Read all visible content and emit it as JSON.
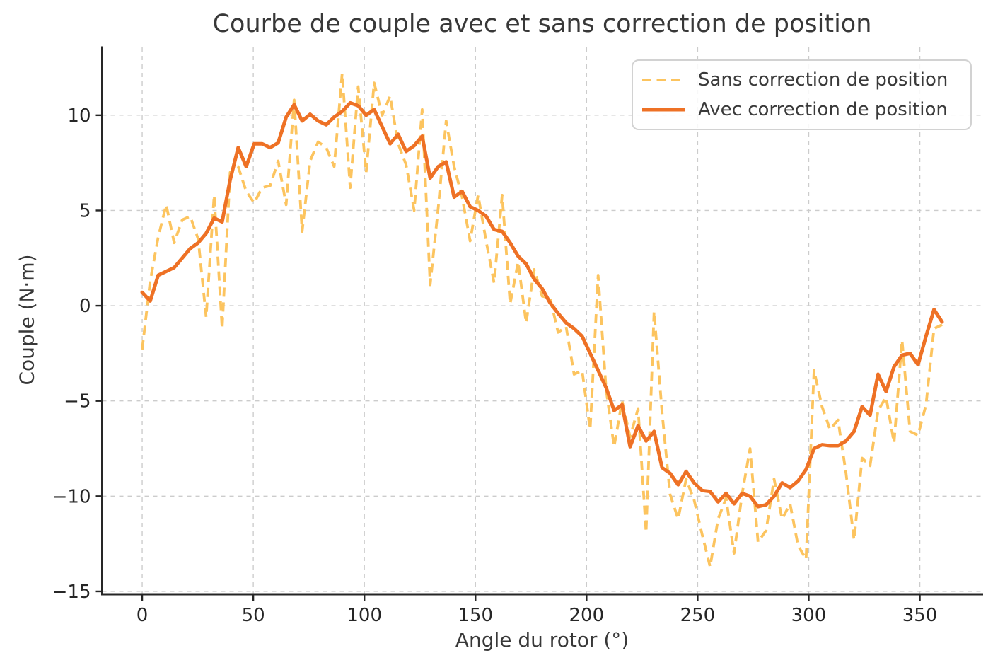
{
  "chart_data": {
    "type": "line",
    "title": "Courbe de couple avec et sans correction de position",
    "xlabel": "Angle du rotor (°)",
    "ylabel": "Couple (N·m)",
    "xlim": [
      -18,
      378
    ],
    "ylim": [
      -15.15,
      13.56
    ],
    "grid": true,
    "grid_style": "dashed",
    "legend_position": "upper right",
    "xticks": [
      0,
      50,
      100,
      150,
      200,
      250,
      300,
      350
    ],
    "xtick_labels": [
      "0",
      "50",
      "100",
      "150",
      "200",
      "250",
      "300",
      "350"
    ],
    "yticks": [
      10,
      5,
      0,
      -5,
      -10,
      -15
    ],
    "ytick_labels": [
      "10",
      "5",
      "0",
      "−5",
      "−10",
      "−15"
    ],
    "style": {
      "text_color": "#383838",
      "tick_color": "#262626",
      "spine_color": "#262626",
      "grid_color": "#cccccc",
      "background": "#ffffff"
    },
    "x": [
      0,
      3.6,
      7.2,
      10.8,
      14.4,
      18,
      21.6,
      25.2,
      28.8,
      32.4,
      36,
      39.6,
      43.2,
      46.8,
      50.4,
      54,
      57.6,
      61.2,
      64.8,
      68.4,
      72,
      75.6,
      79.2,
      82.8,
      86.4,
      90,
      93.6,
      97.2,
      100.8,
      104.4,
      108,
      111.6,
      115.2,
      118.8,
      122.4,
      126,
      129.6,
      133.2,
      136.8,
      140.4,
      144,
      147.6,
      151.2,
      154.8,
      158.4,
      162,
      165.6,
      169.2,
      172.8,
      176.4,
      180,
      183.6,
      187.2,
      190.8,
      194.4,
      198,
      201.6,
      205.2,
      208.8,
      212.4,
      216,
      219.6,
      223.2,
      226.8,
      230.4,
      234,
      237.6,
      241.2,
      244.8,
      248.4,
      252,
      255.6,
      259.2,
      262.8,
      266.4,
      270,
      273.6,
      277.2,
      280.8,
      284.4,
      288,
      291.6,
      295.2,
      298.8,
      302.4,
      306,
      309.6,
      313.2,
      316.8,
      320.4,
      324,
      327.6,
      331.2,
      334.8,
      338.4,
      342,
      345.6,
      349.2,
      352.8,
      356.4,
      360
    ],
    "series": [
      {
        "name": "Sans correction de position",
        "style": "dashed",
        "color": "#fcc45f",
        "linewidth": 3.8,
        "values": [
          -2.3,
          1.3,
          3.6,
          5.3,
          3.3,
          4.5,
          4.7,
          3.5,
          -0.6,
          5.8,
          -1.2,
          7.0,
          7.3,
          6.0,
          5.4,
          6.2,
          6.3,
          7.6,
          5.3,
          10.8,
          3.9,
          7.6,
          8.6,
          8.3,
          7.3,
          12.2,
          6.2,
          11.5,
          7.0,
          11.7,
          10.0,
          11.0,
          8.5,
          7.4,
          5.0,
          10.3,
          1.1,
          5.1,
          9.7,
          7.3,
          5.7,
          3.4,
          5.8,
          3.4,
          1.2,
          5.8,
          0.1,
          2.3,
          -0.9,
          1.9,
          0.5,
          0.4,
          -1.4,
          -1.1,
          -3.6,
          -3.4,
          -6.5,
          1.6,
          -4.4,
          -7.4,
          -5.0,
          -6.9,
          -5.4,
          -11.9,
          -0.3,
          -5.6,
          -9.9,
          -11.2,
          -9.1,
          -10.2,
          -12.0,
          -13.7,
          -11.2,
          -10.1,
          -13.0,
          -9.9,
          -7.5,
          -12.4,
          -11.8,
          -9.1,
          -11.2,
          -10.4,
          -12.6,
          -13.3,
          -3.4,
          -5.3,
          -6.5,
          -6.0,
          -8.8,
          -12.3,
          -8.0,
          -8.4,
          -5.5,
          -4.8,
          -7.2,
          -1.8,
          -6.6,
          -6.8,
          -5.2,
          -1.2,
          -1.0
        ]
      },
      {
        "name": "Avec correction de position",
        "style": "solid",
        "color": "#ee7125",
        "linewidth": 5,
        "values": [
          0.7,
          0.25,
          1.6,
          1.8,
          2.0,
          2.5,
          3.0,
          3.3,
          3.8,
          4.6,
          4.4,
          6.6,
          8.3,
          7.3,
          8.5,
          8.5,
          8.3,
          8.55,
          9.9,
          10.55,
          9.7,
          10.05,
          9.7,
          9.5,
          9.9,
          10.2,
          10.65,
          10.5,
          10.0,
          10.3,
          9.4,
          8.5,
          9.0,
          8.1,
          8.4,
          8.9,
          6.7,
          7.3,
          7.55,
          5.7,
          6.0,
          5.2,
          5.0,
          4.7,
          4.0,
          3.9,
          3.3,
          2.6,
          2.2,
          1.4,
          0.9,
          0.15,
          -0.4,
          -0.9,
          -1.2,
          -1.6,
          -2.5,
          -3.4,
          -4.3,
          -5.5,
          -5.2,
          -7.4,
          -6.3,
          -7.1,
          -6.6,
          -8.5,
          -8.8,
          -9.4,
          -8.7,
          -9.3,
          -9.7,
          -9.75,
          -10.3,
          -9.85,
          -10.4,
          -9.85,
          -10.0,
          -10.55,
          -10.45,
          -10.0,
          -9.3,
          -9.55,
          -9.2,
          -8.6,
          -7.5,
          -7.3,
          -7.35,
          -7.35,
          -7.1,
          -6.6,
          -5.3,
          -5.75,
          -3.6,
          -4.5,
          -3.2,
          -2.6,
          -2.5,
          -3.1,
          -1.6,
          -0.2,
          -0.85
        ]
      }
    ]
  }
}
